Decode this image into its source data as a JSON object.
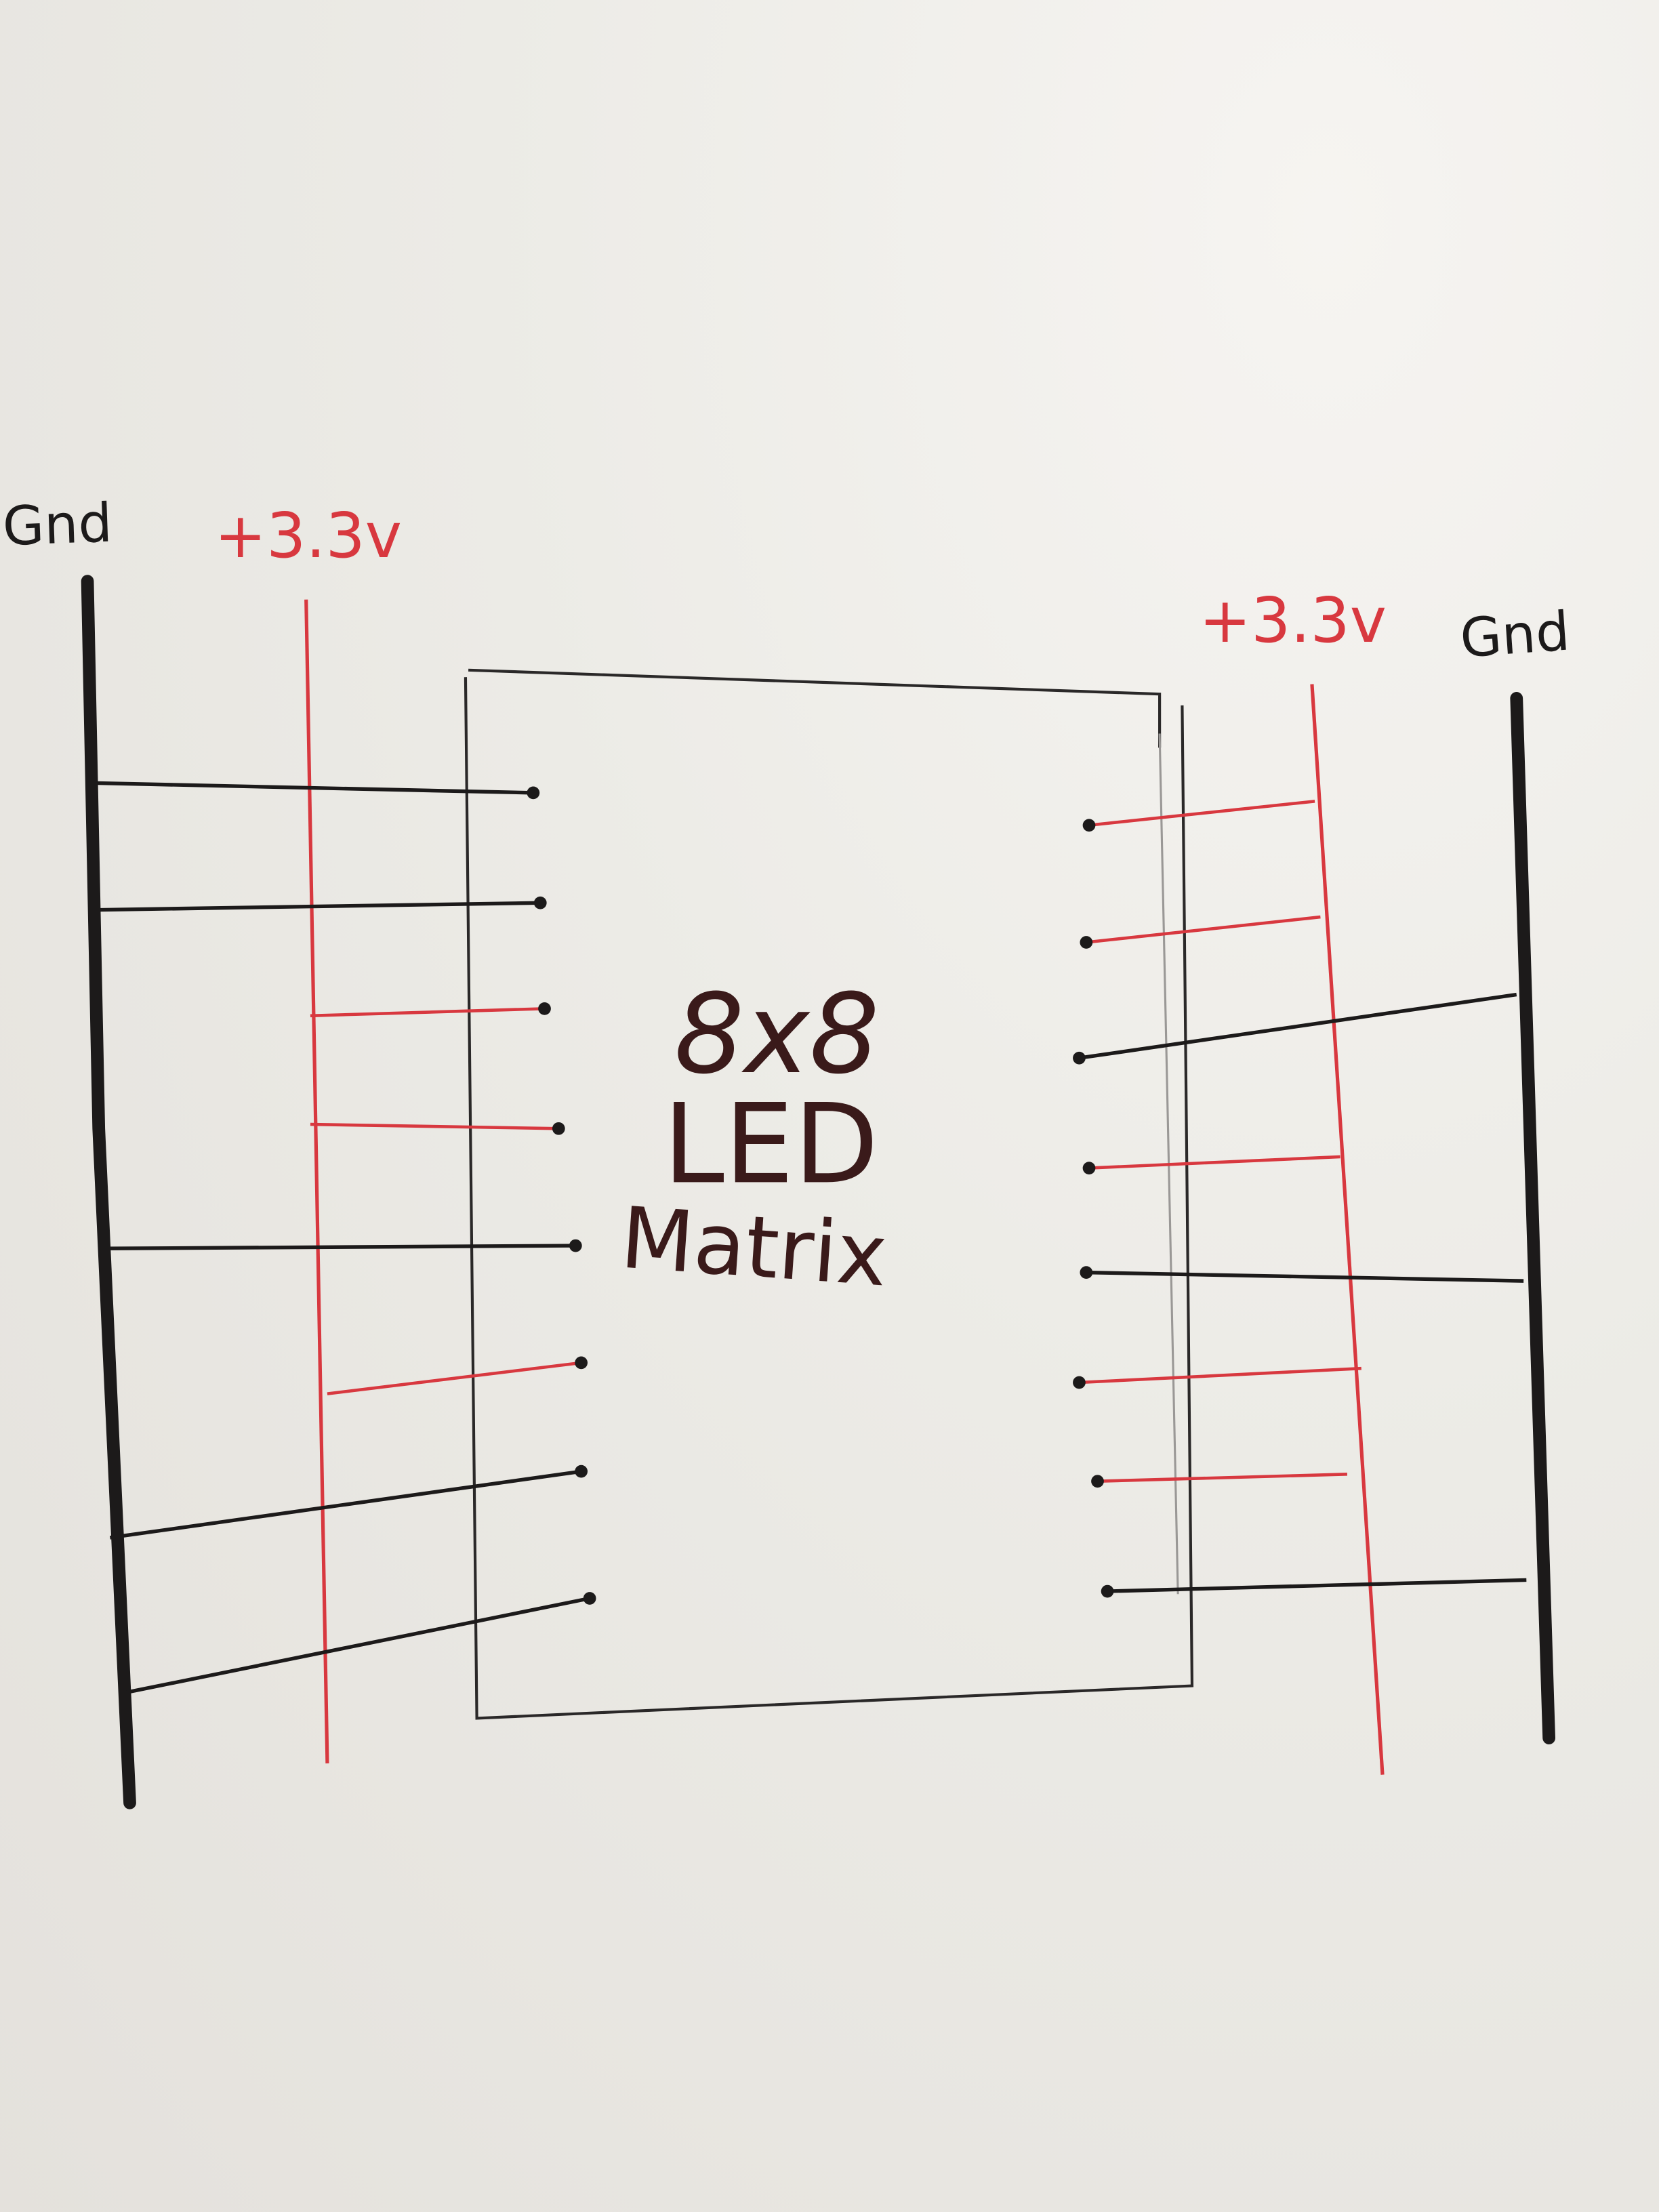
{
  "labels": {
    "left_gnd": "Gnd",
    "left_vcc": "+3.3v",
    "right_vcc": "+3.3v",
    "right_gnd": "Gnd",
    "component_line1": "8x8",
    "component_line2": "LED",
    "component_line3": "Matrix"
  },
  "colors": {
    "ground_ink": "#1c1a1a",
    "power_ink": "#d8383f",
    "text_ink": "#3a1a1a",
    "paper": "#ecebe6"
  },
  "pins": {
    "left": [
      "gnd",
      "gnd",
      "vcc",
      "vcc",
      "gnd",
      "vcc",
      "gnd",
      "gnd"
    ],
    "right": [
      "vcc",
      "vcc",
      "gnd",
      "vcc",
      "gnd",
      "vcc",
      "vcc",
      "gnd"
    ]
  }
}
